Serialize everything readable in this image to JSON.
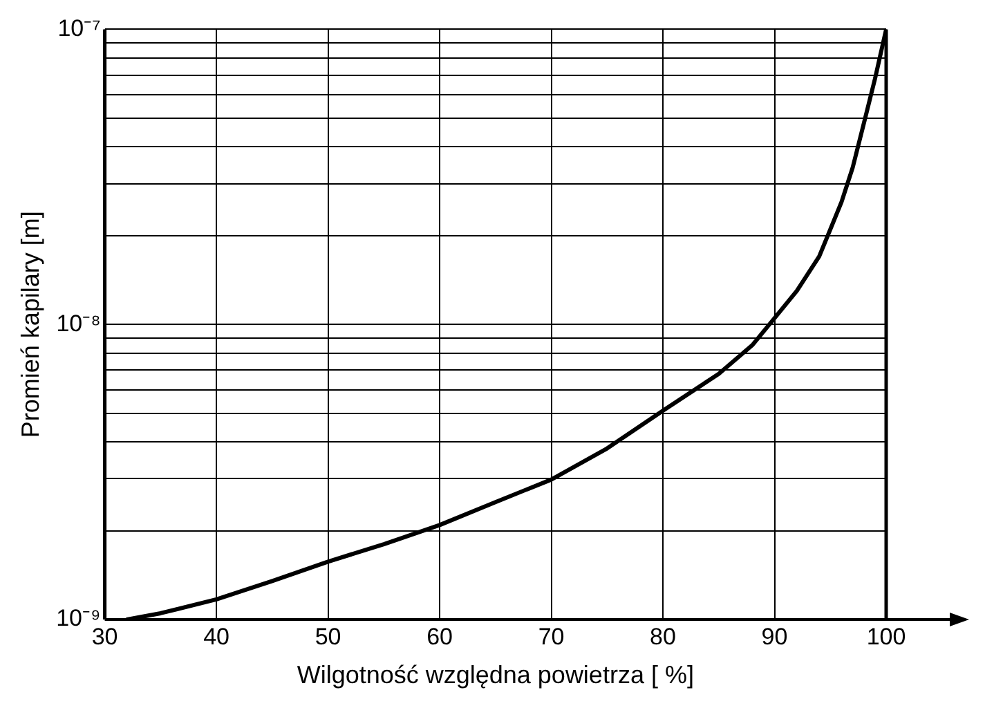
{
  "chart_data": {
    "type": "line",
    "xlabel": "Wilgotność względna powietrza [ %]",
    "ylabel": "Promień kapilary [m]",
    "log": "y",
    "grid": true,
    "legend": false,
    "marker": "none",
    "line_style": "solid",
    "xlim": [
      30,
      100
    ],
    "xticks": [
      30,
      40,
      50,
      60,
      70,
      80,
      90,
      100
    ],
    "ylim": [
      1e-09,
      1e-07
    ],
    "yticks": [
      {
        "value": 1e-09,
        "label": "10⁻⁹"
      },
      {
        "value": 2e-09,
        "label": null
      },
      {
        "value": 3e-09,
        "label": null
      },
      {
        "value": 4e-09,
        "label": null
      },
      {
        "value": 5e-09,
        "label": null
      },
      {
        "value": 6e-09,
        "label": null
      },
      {
        "value": 7e-09,
        "label": null
      },
      {
        "value": 8e-09,
        "label": null
      },
      {
        "value": 9e-09,
        "label": null
      },
      {
        "value": 1e-08,
        "label": "10⁻⁸"
      },
      {
        "value": 2e-08,
        "label": null
      },
      {
        "value": 3e-08,
        "label": null
      },
      {
        "value": 4e-08,
        "label": null
      },
      {
        "value": 5e-08,
        "label": null
      },
      {
        "value": 6e-08,
        "label": null
      },
      {
        "value": 7e-08,
        "label": null
      },
      {
        "value": 8e-08,
        "label": null
      },
      {
        "value": 9e-08,
        "label": null
      },
      {
        "value": 1e-07,
        "label": "10⁻⁷"
      }
    ],
    "series": [
      {
        "color": "#000000",
        "x": [
          32,
          35,
          40,
          45,
          50,
          55,
          60,
          65,
          70,
          75,
          80,
          85,
          88,
          90,
          92,
          94,
          95,
          96,
          97,
          98,
          99,
          100
        ],
        "values": [
          1e-09,
          1.05e-09,
          1.17e-09,
          1.35e-09,
          1.57e-09,
          1.8e-09,
          2.09e-09,
          2.5e-09,
          2.98e-09,
          3.8e-09,
          5.1e-09,
          6.8e-09,
          8.5e-09,
          1.05e-08,
          1.3e-08,
          1.7e-08,
          2.1e-08,
          2.6e-08,
          3.4e-08,
          4.8e-08,
          6.8e-08,
          1e-07
        ]
      }
    ]
  }
}
